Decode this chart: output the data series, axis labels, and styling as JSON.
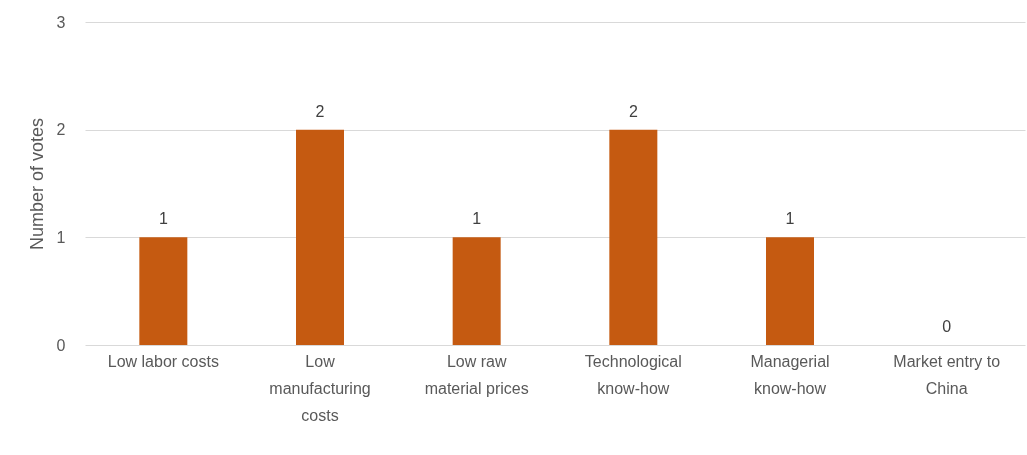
{
  "chart_data": {
    "type": "bar",
    "ylabel": "Number of votes",
    "categories": [
      "Low labor costs",
      "Low manufacturing costs",
      "Low raw material prices",
      "Technological know-how",
      "Managerial know-how",
      "Market entry to China"
    ],
    "values": [
      1,
      2,
      1,
      2,
      1,
      0
    ],
    "color": "#c55a11",
    "ylim": [
      0,
      3
    ],
    "yticks": [
      0,
      1,
      2,
      3
    ],
    "grid": "y",
    "data_labels": true
  }
}
